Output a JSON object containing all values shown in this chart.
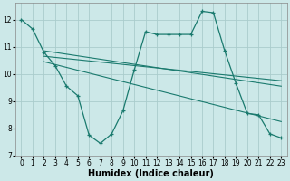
{
  "bg_color": "#cce8e8",
  "grid_color": "#aacccc",
  "line_color": "#1a7a6e",
  "xlabel": "Humidex (Indice chaleur)",
  "xlabel_fontsize": 7,
  "xlim": [
    -0.5,
    23.5
  ],
  "ylim": [
    7.0,
    12.6
  ],
  "yticks": [
    7,
    8,
    9,
    10,
    11,
    12
  ],
  "xticks": [
    0,
    1,
    2,
    3,
    4,
    5,
    6,
    7,
    8,
    9,
    10,
    11,
    12,
    13,
    14,
    15,
    16,
    17,
    18,
    19,
    20,
    21,
    22,
    23
  ],
  "main_x": [
    0,
    1,
    2,
    3,
    4,
    5,
    6,
    7,
    8,
    9,
    10,
    11,
    12,
    13,
    14,
    15,
    16,
    17,
    18,
    19,
    20,
    21,
    22,
    23
  ],
  "main_y": [
    12.0,
    11.65,
    10.8,
    10.3,
    9.55,
    9.2,
    7.75,
    7.45,
    7.8,
    8.65,
    10.15,
    11.55,
    11.45,
    11.45,
    11.45,
    11.45,
    12.3,
    12.25,
    10.85,
    9.65,
    8.55,
    8.5,
    7.8,
    7.65
  ],
  "trend1_x": [
    2,
    23
  ],
  "trend1_y": [
    10.85,
    9.55
  ],
  "trend2_x": [
    2,
    23
  ],
  "trend2_y": [
    10.65,
    9.75
  ],
  "trend3_x": [
    2,
    23
  ],
  "trend3_y": [
    10.45,
    8.25
  ]
}
